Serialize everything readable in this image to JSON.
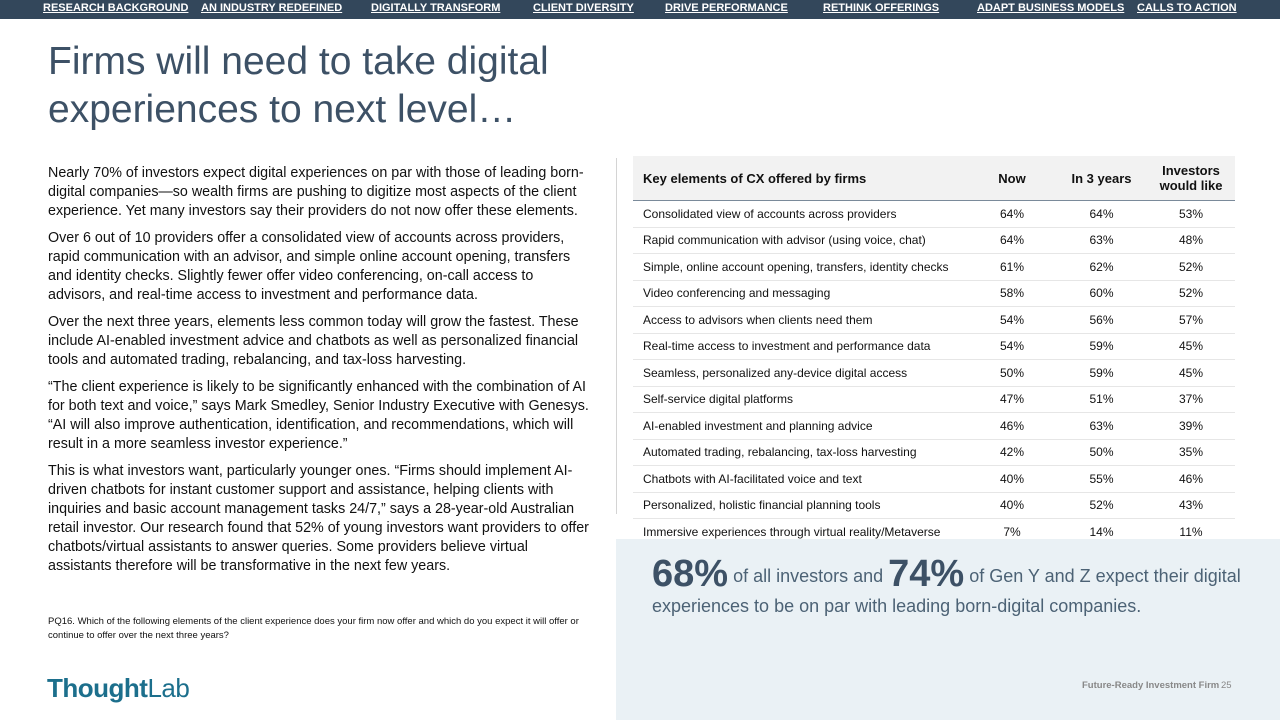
{
  "nav": [
    "RESEARCH BACKGROUND",
    "AN INDUSTRY REDEFINED",
    "DIGITALLY TRANSFORM",
    "CLIENT DIVERSITY",
    "DRIVE PERFORMANCE",
    "RETHINK OFFERINGS",
    "ADAPT BUSINESS MODELS",
    "CALLS TO ACTION"
  ],
  "title": "Firms will need to take digital experiences to next level…",
  "paragraphs": [
    "Nearly 70% of investors expect digital experiences on par with those of leading born-digital companies—so wealth firms are pushing to digitize most aspects of the client experience. Yet many investors say their providers do not now offer these elements.",
    "Over 6 out of 10 providers offer a consolidated view of accounts across providers, rapid communication with an advisor, and simple online account opening, transfers and identity checks. Slightly fewer offer video conferencing, on-call access to advisors, and real-time access to investment and performance data.",
    "Over the next three years, elements less common today will grow the fastest. These include AI-enabled investment advice and chatbots as well as personalized financial tools and automated trading, rebalancing, and tax-loss harvesting.",
    "“The client experience is likely to be significantly enhanced with the combination of AI for both text and voice,” says Mark Smedley, Senior Industry Executive with Genesys. “AI will also improve authentication, identification, and recommendations, which will result in a more seamless investor experience.”",
    "This is what investors want, particularly younger ones. “Firms should  implement AI-driven chatbots for instant customer support and assistance, helping clients with inquiries and basic account management tasks 24/7,” says a 28-year-old Australian retail investor. Our research found that 52% of young investors want providers to offer chatbots/virtual assistants to answer queries. Some providers believe virtual assistants therefore will be transformative in the next few years."
  ],
  "footnote": "PQ16. Which of the following elements of the client experience does your firm now offer and which do you expect it will offer or continue to offer over the next three years?",
  "logo": {
    "bold": "Thought",
    "light": "Lab"
  },
  "table": {
    "headers": [
      "Key elements of CX offered by firms",
      "Now",
      "In 3 years",
      "Investors would like"
    ],
    "rows": [
      [
        "Consolidated view of accounts across providers",
        "64%",
        "64%",
        "53%"
      ],
      [
        "Rapid communication with advisor (using voice, chat)",
        "64%",
        "63%",
        "48%"
      ],
      [
        "Simple, online account opening, transfers, identity checks",
        "61%",
        "62%",
        "52%"
      ],
      [
        "Video conferencing and messaging",
        "58%",
        "60%",
        "52%"
      ],
      [
        "Access to advisors when clients need them",
        "54%",
        "56%",
        "57%"
      ],
      [
        "Real-time access to investment and performance data",
        "54%",
        "59%",
        "45%"
      ],
      [
        "Seamless, personalized any-device digital access",
        "50%",
        "59%",
        "45%"
      ],
      [
        "Self-service digital platforms",
        "47%",
        "51%",
        "37%"
      ],
      [
        "AI-enabled investment and planning advice",
        "46%",
        "63%",
        "39%"
      ],
      [
        "Automated trading, rebalancing, tax-loss harvesting",
        "42%",
        "50%",
        "35%"
      ],
      [
        "Chatbots with AI-facilitated voice and text",
        "40%",
        "55%",
        "46%"
      ],
      [
        "Personalized, holistic financial planning tools",
        "40%",
        "52%",
        "43%"
      ],
      [
        "Immersive experiences through virtual reality/Metaverse",
        "7%",
        "14%",
        "11%"
      ]
    ]
  },
  "callout": {
    "stat1": "68%",
    "text1": " of all investors and ",
    "stat2": "74%",
    "text2": " of Gen Y and Z expect their digital experiences to be on par with leading born-digital companies."
  },
  "footer": {
    "label": "Future-Ready Investment Firm",
    "page": "25"
  },
  "colors": {
    "nav_bg": "#33475b",
    "title": "#3d5166",
    "logo": "#1c6f8c",
    "callout_bg": "#eaf1f5"
  }
}
